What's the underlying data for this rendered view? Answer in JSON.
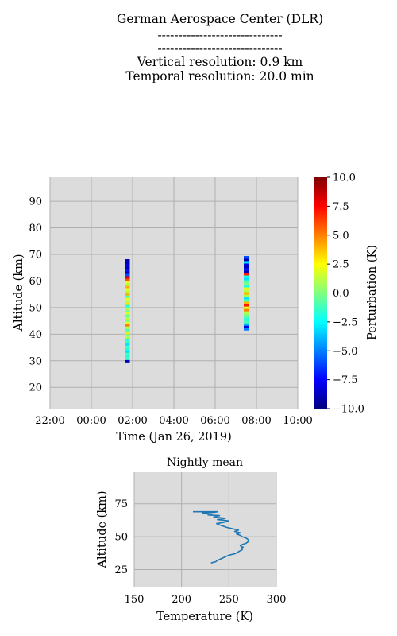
{
  "header": {
    "institution": "German Aerospace Center (DLR)",
    "dashes_1": "------------------------------",
    "dashes_2": "------------------------------",
    "vertical_resolution": "Vertical resolution: 0.9 km",
    "temporal_resolution": "Temporal resolution: 20.0 min"
  },
  "chart_data": [
    {
      "type": "heatmap",
      "title": "",
      "xlabel": "Time (Jan 26, 2019)",
      "ylabel": "Altitude (km)",
      "x_tick_labels": [
        "22:00",
        "00:00",
        "02:00",
        "04:00",
        "06:00",
        "08:00",
        "10:00"
      ],
      "y_tick_labels": [
        "20",
        "30",
        "40",
        "50",
        "60",
        "70",
        "80",
        "90"
      ],
      "xlim_hours_from_2200": [
        0,
        12
      ],
      "ylim": [
        12,
        99
      ],
      "grid": true,
      "colormap": "jet",
      "colorbar": {
        "label": "Perturbation (K)",
        "range": [
          -10.0,
          10.0
        ],
        "tick_labels": [
          "10.0",
          "7.5",
          "5.0",
          "2.5",
          "0.0",
          "−2.5",
          "−5.0",
          "−7.5",
          "−10.0"
        ]
      },
      "columns": [
        {
          "time": "01:45",
          "alt_bottom": 29.5,
          "alt_step": 0.9,
          "values": [
            -9,
            -1,
            -2,
            -1,
            -3,
            -2,
            -1,
            -3,
            -1,
            -2,
            1,
            0,
            3,
            -1,
            1,
            5,
            2,
            0,
            1,
            -1,
            2,
            0,
            1,
            -2,
            3,
            1,
            2,
            -1,
            4,
            1,
            2,
            4,
            1,
            2,
            6,
            8,
            -6,
            -9,
            -7,
            -9,
            -8,
            -9,
            -9
          ]
        },
        {
          "time": "07:30",
          "alt_bottom": 41.5,
          "alt_step": 0.9,
          "values": [
            -5,
            -8,
            -4,
            -1,
            -2,
            -1,
            0,
            1,
            5,
            2,
            7,
            4,
            -1,
            -3,
            1,
            4,
            1,
            2,
            -2,
            0,
            -1,
            -3,
            -2,
            7,
            -9,
            -7,
            -9,
            -8,
            -3,
            -9,
            -6
          ]
        }
      ]
    },
    {
      "type": "line",
      "title": "Nightly mean",
      "xlabel": "Temperature (K)",
      "ylabel": "Altitude (km)",
      "x_tick_labels": [
        "150",
        "200",
        "250",
        "300"
      ],
      "y_tick_labels": [
        "25",
        "50",
        "75"
      ],
      "xlim": [
        150,
        300
      ],
      "ylim": [
        12,
        99
      ],
      "grid": true,
      "color": "#1f77b4",
      "series": [
        {
          "x": [
            231,
            236,
            238,
            244,
            250,
            256,
            259,
            261,
            264,
            263,
            265,
            262,
            264,
            268,
            270,
            271,
            270,
            268,
            264,
            262,
            258,
            262,
            256,
            260,
            254,
            248,
            244,
            240,
            237,
            245,
            250,
            238,
            246,
            234,
            240,
            228,
            232,
            224,
            222,
            234,
            238,
            212
          ],
          "y": [
            30,
            31,
            32,
            34,
            36,
            37,
            38,
            39,
            40,
            41,
            42,
            43,
            44,
            45,
            46,
            47,
            48,
            49,
            50,
            51,
            52,
            53,
            54,
            55,
            56,
            57,
            58,
            59,
            60,
            61,
            62,
            63,
            64,
            65,
            66,
            66.5,
            67,
            67.5,
            68,
            68.5,
            69,
            69
          ]
        }
      ]
    }
  ]
}
